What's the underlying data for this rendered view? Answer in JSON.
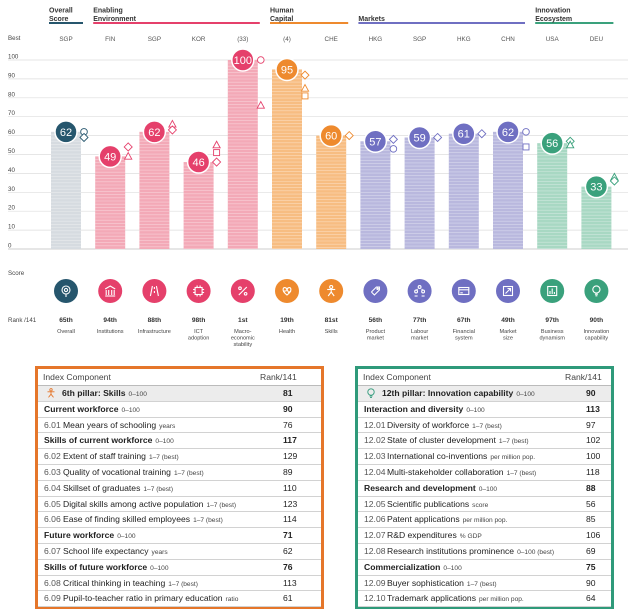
{
  "chart_data": {
    "type": "bar",
    "ylim": [
      0,
      100
    ],
    "y_axis_label_top": "Best",
    "y_axis_label_bottom": "Score",
    "y_ticks": [
      100,
      90,
      80,
      70,
      60,
      50,
      40,
      30,
      20,
      10,
      0
    ],
    "rank_label": "Rank /141",
    "groups": [
      {
        "label": "Overall\nScore",
        "color": "#26566d",
        "start": 0,
        "end": 0
      },
      {
        "label": "Enabling\nEnvironment",
        "color": "#e5406b",
        "start": 1,
        "end": 4
      },
      {
        "label": "Human\nCapital",
        "color": "#ee8a2e",
        "start": 5,
        "end": 6
      },
      {
        "label": "Markets",
        "color": "#6f6fc2",
        "start": 7,
        "end": 10
      },
      {
        "label": "Innovation\nEcosystem",
        "color": "#3aa17c",
        "start": 11,
        "end": 12
      }
    ],
    "pillars": [
      {
        "best": "SGP",
        "value": 62,
        "rank": "65th",
        "label": "Overall",
        "color": "#26566d",
        "fill": "#d6dbe0",
        "icon": "target-icon",
        "marks": [
          {
            "shape": "circle",
            "y": 62
          },
          {
            "shape": "diamond",
            "y": 59
          }
        ]
      },
      {
        "best": "FIN",
        "value": 49,
        "rank": "94th",
        "label": "Institutions",
        "color": "#e5406b",
        "fill": "#f3a9b7",
        "icon": "building-icon",
        "marks": [
          {
            "shape": "diamond",
            "y": 54
          },
          {
            "shape": "triangle",
            "y": 49
          }
        ]
      },
      {
        "best": "SGP",
        "value": 62,
        "rank": "88th",
        "label": "Infrastructure",
        "color": "#e5406b",
        "fill": "#f3a9b7",
        "icon": "road-icon",
        "marks": [
          {
            "shape": "triangle",
            "y": 66
          },
          {
            "shape": "diamond",
            "y": 63
          }
        ]
      },
      {
        "best": "KOR",
        "value": 46,
        "rank": "98th",
        "label": "ICT\nadoption",
        "color": "#e5406b",
        "fill": "#f3a9b7",
        "icon": "chip-icon",
        "marks": [
          {
            "shape": "triangle",
            "y": 55
          },
          {
            "shape": "square",
            "y": 51
          },
          {
            "shape": "diamond",
            "y": 46
          }
        ]
      },
      {
        "best": "(33)",
        "value": 100,
        "rank": "1st",
        "label": "Macro-\neconomic\nstability",
        "color": "#e5406b",
        "fill": "#f3a9b7",
        "icon": "percent-icon",
        "marks": [
          {
            "shape": "circle",
            "y": 100
          },
          {
            "shape": "triangle",
            "y": 76
          }
        ]
      },
      {
        "best": "(4)",
        "value": 95,
        "rank": "19th",
        "label": "Health",
        "color": "#ee8a2e",
        "fill": "#f7bd82",
        "icon": "heart-icon",
        "marks": [
          {
            "shape": "diamond",
            "y": 92
          },
          {
            "shape": "triangle",
            "y": 85
          },
          {
            "shape": "square",
            "y": 81
          }
        ]
      },
      {
        "best": "CHE",
        "value": 60,
        "rank": "81st",
        "label": "Skills",
        "color": "#ee8a2e",
        "fill": "#f7bd82",
        "icon": "person-icon",
        "marks": [
          {
            "shape": "diamond",
            "y": 60
          }
        ]
      },
      {
        "best": "HKG",
        "value": 57,
        "rank": "56th",
        "label": "Product\nmarket",
        "color": "#6f6fc2",
        "fill": "#b9b8de",
        "icon": "tag-icon",
        "marks": [
          {
            "shape": "diamond",
            "y": 58
          },
          {
            "shape": "circle",
            "y": 53
          }
        ]
      },
      {
        "best": "SGP",
        "value": 59,
        "rank": "77th",
        "label": "Labour\nmarket",
        "color": "#6f6fc2",
        "fill": "#b9b8de",
        "icon": "people-icon",
        "marks": [
          {
            "shape": "diamond",
            "y": 59
          }
        ]
      },
      {
        "best": "HKG",
        "value": 61,
        "rank": "67th",
        "label": "Financial\nsystem",
        "color": "#6f6fc2",
        "fill": "#b9b8de",
        "icon": "card-icon",
        "marks": [
          {
            "shape": "diamond",
            "y": 61
          }
        ]
      },
      {
        "best": "CHN",
        "value": 62,
        "rank": "49th",
        "label": "Market\nsize",
        "color": "#6f6fc2",
        "fill": "#b9b8de",
        "icon": "expand-icon",
        "marks": [
          {
            "shape": "circle",
            "y": 62
          },
          {
            "shape": "square",
            "y": 54
          }
        ]
      },
      {
        "best": "USA",
        "value": 56,
        "rank": "97th",
        "label": "Business\ndynamism",
        "color": "#3aa17c",
        "fill": "#a8d8c3",
        "icon": "chart-icon",
        "marks": [
          {
            "shape": "diamond",
            "y": 57
          },
          {
            "shape": "triangle",
            "y": 55
          }
        ]
      },
      {
        "best": "DEU",
        "value": 33,
        "rank": "90th",
        "label": "Innovation\ncapability",
        "color": "#3aa17c",
        "fill": "#a8d8c3",
        "icon": "bulb-icon",
        "marks": [
          {
            "shape": "triangle",
            "y": 38
          },
          {
            "shape": "diamond",
            "y": 36
          }
        ]
      }
    ]
  },
  "panels": {
    "left": {
      "header": {
        "component": "Index Component",
        "rank": "Rank/141"
      },
      "rows": [
        {
          "kind": "pillar",
          "code": "",
          "name": "6th pillar: Skills",
          "unit": "0–100",
          "rank": "81"
        },
        {
          "kind": "sub",
          "code": "",
          "name": "Current workforce",
          "unit": "0–100",
          "rank": "90"
        },
        {
          "kind": "item",
          "code": "6.01",
          "name": "Mean years of schooling",
          "unit": "years",
          "rank": "76"
        },
        {
          "kind": "sub",
          "code": "",
          "name": "Skills of current workforce",
          "unit": "0–100",
          "rank": "117"
        },
        {
          "kind": "item",
          "code": "6.02",
          "name": "Extent of staff training",
          "unit": "1–7 (best)",
          "rank": "129"
        },
        {
          "kind": "item",
          "code": "6.03",
          "name": "Quality of vocational training",
          "unit": "1–7 (best)",
          "rank": "89"
        },
        {
          "kind": "item",
          "code": "6.04",
          "name": "Skillset of graduates",
          "unit": "1–7 (best)",
          "rank": "110"
        },
        {
          "kind": "item",
          "code": "6.05",
          "name": "Digital skills among active population",
          "unit": "1–7 (best)",
          "rank": "123"
        },
        {
          "kind": "item",
          "code": "6.06",
          "name": "Ease of finding skilled employees",
          "unit": "1–7 (best)",
          "rank": "114"
        },
        {
          "kind": "sub",
          "code": "",
          "name": "Future workforce",
          "unit": "0–100",
          "rank": "71"
        },
        {
          "kind": "item",
          "code": "6.07",
          "name": "School life expectancy",
          "unit": "years",
          "rank": "62"
        },
        {
          "kind": "sub",
          "code": "",
          "name": "Skills of future workforce",
          "unit": "0–100",
          "rank": "76"
        },
        {
          "kind": "item",
          "code": "6.08",
          "name": "Critical thinking in teaching",
          "unit": "1–7 (best)",
          "rank": "113"
        },
        {
          "kind": "item",
          "code": "6.09",
          "name": "Pupil-to-teacher ratio in primary education",
          "unit": "ratio",
          "rank": "61"
        }
      ]
    },
    "right": {
      "header": {
        "component": "Index Component",
        "rank": "Rank/141"
      },
      "rows": [
        {
          "kind": "pillar",
          "code": "",
          "name": "12th pillar: Innovation capability",
          "unit": "0–100",
          "rank": "90"
        },
        {
          "kind": "sub",
          "code": "",
          "name": "Interaction and diversity",
          "unit": "0–100",
          "rank": "113"
        },
        {
          "kind": "item",
          "code": "12.01",
          "name": "Diversity of workforce",
          "unit": "1–7 (best)",
          "rank": "97"
        },
        {
          "kind": "item",
          "code": "12.02",
          "name": "State of cluster development",
          "unit": "1–7 (best)",
          "rank": "102"
        },
        {
          "kind": "item",
          "code": "12.03",
          "name": "International co-inventions",
          "unit": "per million pop.",
          "rank": "100"
        },
        {
          "kind": "item",
          "code": "12.04",
          "name": "Multi-stakeholder collaboration",
          "unit": "1–7 (best)",
          "rank": "118"
        },
        {
          "kind": "sub",
          "code": "",
          "name": "Research and development",
          "unit": "0–100",
          "rank": "88"
        },
        {
          "kind": "item",
          "code": "12.05",
          "name": "Scientific publications",
          "unit": "score",
          "rank": "56"
        },
        {
          "kind": "item",
          "code": "12.06",
          "name": "Patent applications",
          "unit": "per million pop.",
          "rank": "85"
        },
        {
          "kind": "item",
          "code": "12.07",
          "name": "R&D expenditures",
          "unit": "% GDP",
          "rank": "106"
        },
        {
          "kind": "item",
          "code": "12.08",
          "name": "Research institutions prominence",
          "unit": "0–100 (best)",
          "rank": "69"
        },
        {
          "kind": "sub",
          "code": "",
          "name": "Commercialization",
          "unit": "0–100",
          "rank": "75"
        },
        {
          "kind": "item",
          "code": "12.09",
          "name": "Buyer sophistication",
          "unit": "1–7 (best)",
          "rank": "90"
        },
        {
          "kind": "item",
          "code": "12.10",
          "name": "Trademark applications",
          "unit": "per million pop.",
          "rank": "64"
        }
      ]
    }
  }
}
